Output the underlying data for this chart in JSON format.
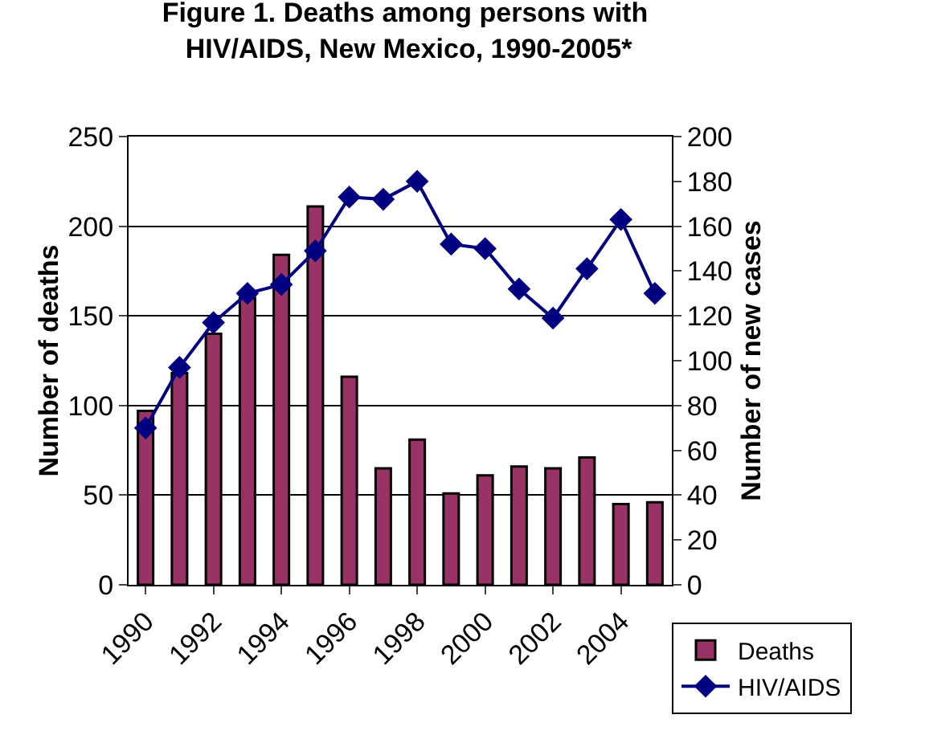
{
  "chart_data": {
    "type": "bar",
    "title": "Figure 1. Deaths among persons with HIV/AIDS, New Mexico, 1990-2005*",
    "ylabel": "Number of deaths",
    "y2label": "Number of new cases",
    "categories": [
      "1990",
      null,
      "1992",
      null,
      "1994",
      null,
      "1996",
      null,
      "1998",
      null,
      "2000",
      null,
      "2002",
      null,
      "2004",
      null
    ],
    "series": [
      {
        "name": "Deaths",
        "color": "#993366",
        "values": [
          97,
          118,
          140,
          160,
          184,
          211,
          116,
          65,
          81,
          51,
          61,
          66,
          65,
          71,
          45,
          46
        ]
      },
      {
        "name": "HIV/AIDS",
        "type": "line",
        "axis": "y2",
        "color": "#000080",
        "marker": "diamond",
        "values": [
          70,
          97,
          117,
          130,
          134,
          149,
          173,
          172,
          180,
          152,
          150,
          132,
          119,
          141,
          163,
          130
        ]
      }
    ],
    "ylim": [
      0,
      250
    ],
    "yticks": [
      0,
      50,
      100,
      150,
      200,
      250
    ],
    "y2lim": [
      0,
      200
    ],
    "y2ticks": [
      0,
      20,
      40,
      60,
      80,
      100,
      120,
      140,
      160,
      180,
      200
    ],
    "grid": "y",
    "legend": "bottom right"
  }
}
